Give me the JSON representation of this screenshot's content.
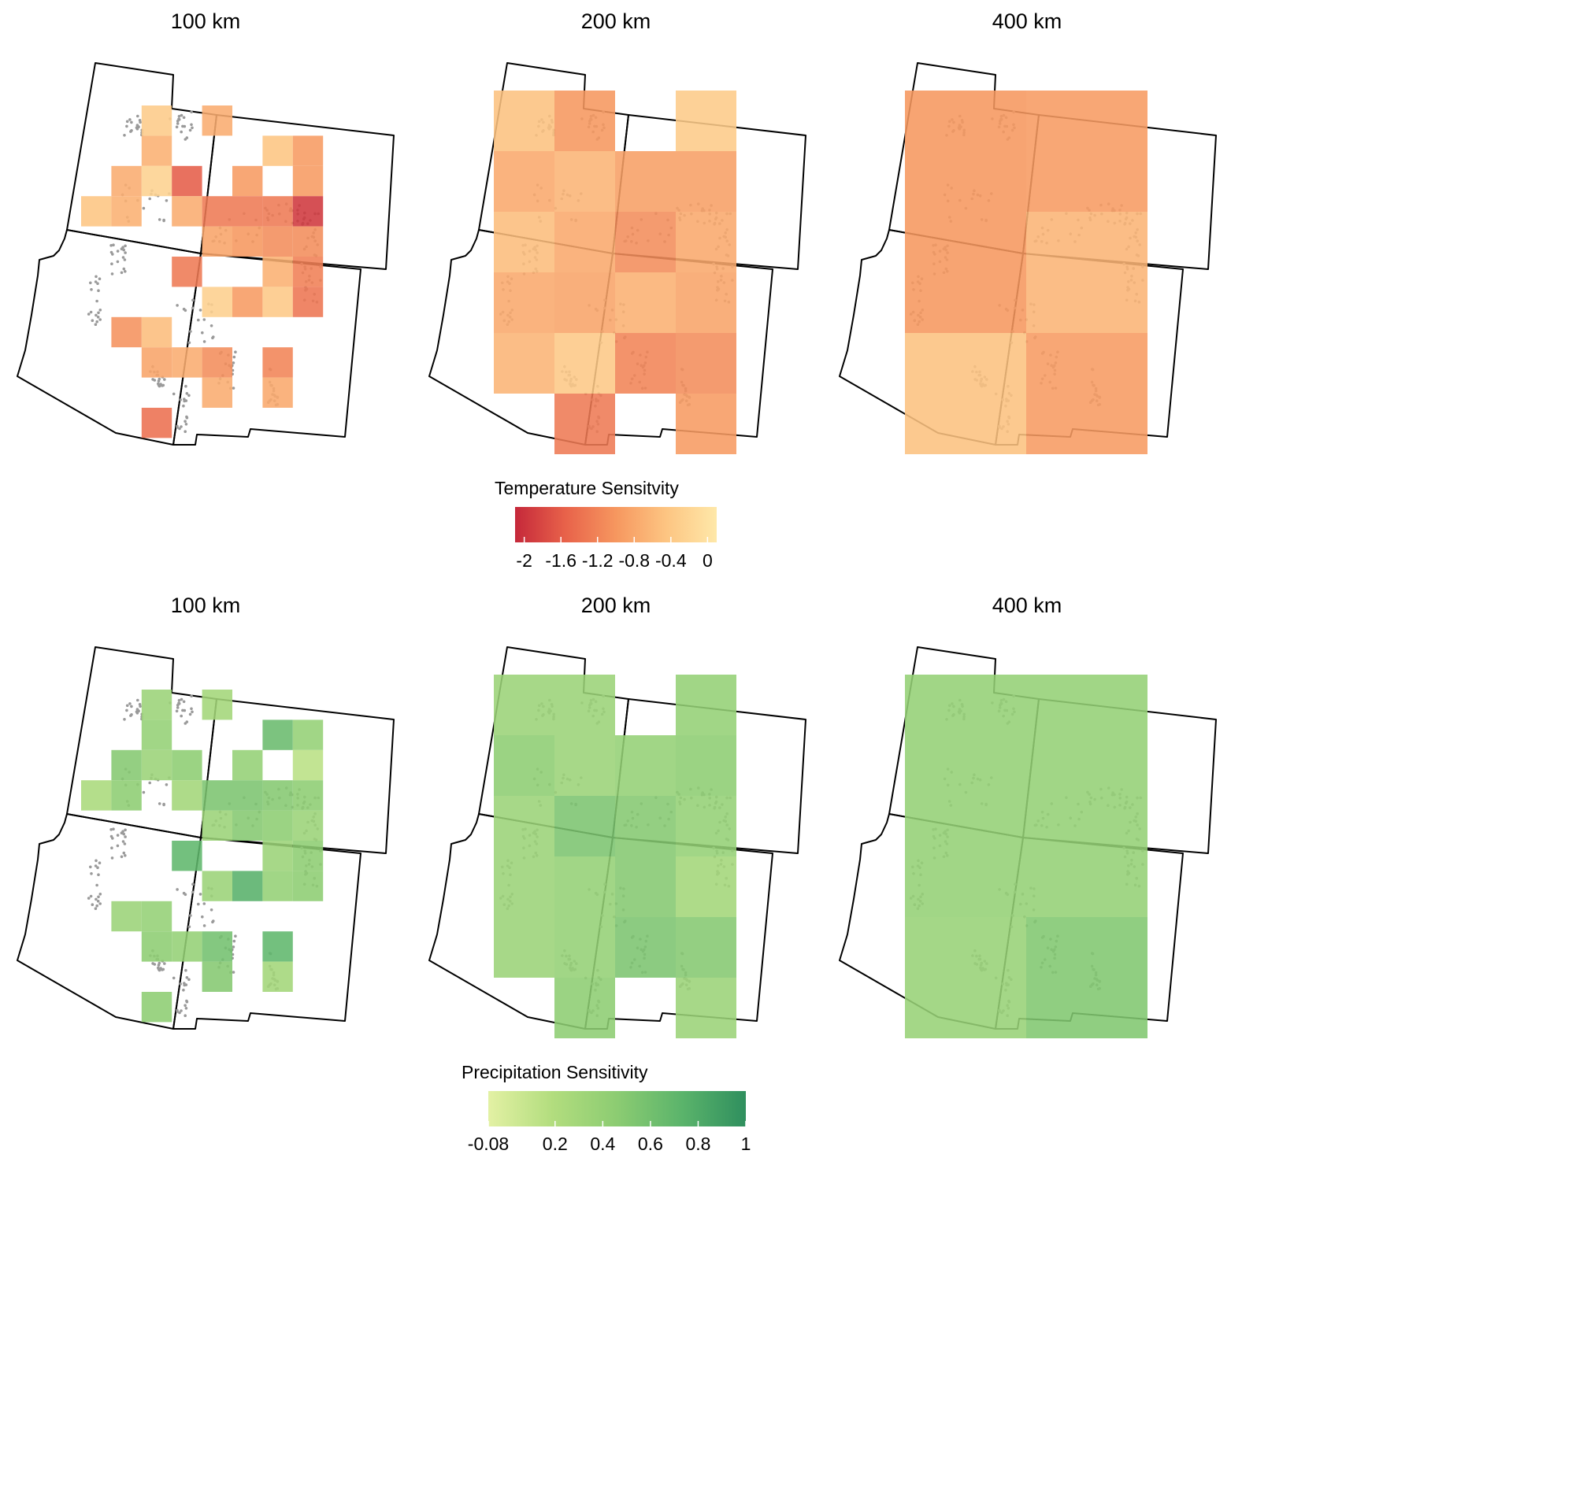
{
  "panel_titles": [
    "100 km",
    "200 km",
    "400 km",
    "100 km",
    "200 km",
    "400 km"
  ],
  "legends": {
    "temperature": {
      "title": "Temperature Sensitvity",
      "ticks": [
        "-2",
        "-1.6",
        "-1.2",
        "-0.8",
        "-0.4",
        "0"
      ],
      "tick_values": [
        -2,
        -1.6,
        -1.2,
        -0.8,
        -0.4,
        0
      ],
      "range": [
        -2.1,
        0.1
      ],
      "colors": [
        "#c5283a",
        "#e8624a",
        "#f6975f",
        "#fdc582",
        "#fee8a9"
      ]
    },
    "precipitation": {
      "title": "Precipitation Sensitivity",
      "ticks": [
        "-0.08",
        "0.2",
        "0.4",
        "0.6",
        "0.8",
        "1"
      ],
      "tick_values": [
        -0.08,
        0.2,
        0.4,
        0.6,
        0.8,
        1
      ],
      "range": [
        -0.08,
        1.0
      ],
      "colors": [
        "#e3f1a4",
        "#b2dd7e",
        "#8ccc72",
        "#5bb46b",
        "#2f8f5e"
      ]
    }
  },
  "colors": {
    "border": "#000000",
    "site_points": "#9a9a9a",
    "background": "#ffffff"
  },
  "maps": {
    "temperature": {
      "100km": [
        {
          "r": 0,
          "c": 2,
          "v": -0.35
        },
        {
          "r": 0,
          "c": 4,
          "v": -0.75
        },
        {
          "r": 1,
          "c": 2,
          "v": -0.7
        },
        {
          "r": 1,
          "c": 6,
          "v": -0.45
        },
        {
          "r": 1,
          "c": 7,
          "v": -0.95
        },
        {
          "r": 2,
          "c": 1,
          "v": -0.75
        },
        {
          "r": 2,
          "c": 2,
          "v": -0.25
        },
        {
          "r": 2,
          "c": 3,
          "v": -1.6
        },
        {
          "r": 2,
          "c": 5,
          "v": -0.95
        },
        {
          "r": 2,
          "c": 7,
          "v": -0.95
        },
        {
          "r": 3,
          "c": 0,
          "v": -0.45
        },
        {
          "r": 3,
          "c": 1,
          "v": -0.7
        },
        {
          "r": 3,
          "c": 3,
          "v": -0.75
        },
        {
          "r": 3,
          "c": 4,
          "v": -1.3
        },
        {
          "r": 3,
          "c": 5,
          "v": -1.3
        },
        {
          "r": 3,
          "c": 6,
          "v": -1.3
        },
        {
          "r": 3,
          "c": 7,
          "v": -1.95
        },
        {
          "r": 4,
          "c": 4,
          "v": -0.85
        },
        {
          "r": 4,
          "c": 5,
          "v": -1.0
        },
        {
          "r": 4,
          "c": 6,
          "v": -1.1
        },
        {
          "r": 4,
          "c": 7,
          "v": -1.1
        },
        {
          "r": 5,
          "c": 3,
          "v": -1.3
        },
        {
          "r": 5,
          "c": 6,
          "v": -0.7
        },
        {
          "r": 5,
          "c": 7,
          "v": -1.25
        },
        {
          "r": 6,
          "c": 4,
          "v": -0.3
        },
        {
          "r": 6,
          "c": 5,
          "v": -0.95
        },
        {
          "r": 6,
          "c": 6,
          "v": -0.4
        },
        {
          "r": 6,
          "c": 7,
          "v": -1.35
        },
        {
          "r": 7,
          "c": 1,
          "v": -1.05
        },
        {
          "r": 7,
          "c": 2,
          "v": -0.55
        },
        {
          "r": 8,
          "c": 2,
          "v": -0.85
        },
        {
          "r": 8,
          "c": 3,
          "v": -0.75
        },
        {
          "r": 8,
          "c": 4,
          "v": -1.1
        },
        {
          "r": 8,
          "c": 6,
          "v": -1.2
        },
        {
          "r": 9,
          "c": 4,
          "v": -0.75
        },
        {
          "r": 9,
          "c": 6,
          "v": -0.8
        },
        {
          "r": 10,
          "c": 2,
          "v": -1.4
        }
      ],
      "200km": [
        {
          "r": 0,
          "c": 0,
          "v": -0.5
        },
        {
          "r": 0,
          "c": 1,
          "v": -1.0
        },
        {
          "r": 0,
          "c": 3,
          "v": -0.35
        },
        {
          "r": 1,
          "c": 0,
          "v": -0.8
        },
        {
          "r": 1,
          "c": 1,
          "v": -0.65
        },
        {
          "r": 1,
          "c": 2,
          "v": -0.9
        },
        {
          "r": 1,
          "c": 3,
          "v": -0.9
        },
        {
          "r": 2,
          "c": 0,
          "v": -0.55
        },
        {
          "r": 2,
          "c": 1,
          "v": -0.8
        },
        {
          "r": 2,
          "c": 2,
          "v": -1.1
        },
        {
          "r": 2,
          "c": 3,
          "v": -0.8
        },
        {
          "r": 3,
          "c": 0,
          "v": -0.8
        },
        {
          "r": 3,
          "c": 1,
          "v": -0.85
        },
        {
          "r": 3,
          "c": 2,
          "v": -0.7
        },
        {
          "r": 3,
          "c": 3,
          "v": -0.85
        },
        {
          "r": 4,
          "c": 0,
          "v": -0.65
        },
        {
          "r": 4,
          "c": 1,
          "v": -0.4
        },
        {
          "r": 4,
          "c": 2,
          "v": -1.2
        },
        {
          "r": 4,
          "c": 3,
          "v": -1.1
        },
        {
          "r": 5,
          "c": 1,
          "v": -1.3
        },
        {
          "r": 5,
          "c": 3,
          "v": -0.95
        }
      ],
      "400km": [
        {
          "r": 0,
          "c": 0,
          "v": -1.0
        },
        {
          "r": 0,
          "c": 1,
          "v": -0.95
        },
        {
          "r": 1,
          "c": 0,
          "v": -1.0
        },
        {
          "r": 1,
          "c": 1,
          "v": -0.65
        },
        {
          "r": 2,
          "c": 0,
          "v": -0.5
        },
        {
          "r": 2,
          "c": 1,
          "v": -0.95
        }
      ]
    },
    "precipitation": {
      "100km": [
        {
          "r": 0,
          "c": 2,
          "v": 0.35
        },
        {
          "r": 0,
          "c": 4,
          "v": 0.3
        },
        {
          "r": 1,
          "c": 2,
          "v": 0.4
        },
        {
          "r": 1,
          "c": 6,
          "v": 0.65
        },
        {
          "r": 1,
          "c": 7,
          "v": 0.4
        },
        {
          "r": 2,
          "c": 1,
          "v": 0.5
        },
        {
          "r": 2,
          "c": 2,
          "v": 0.35
        },
        {
          "r": 2,
          "c": 3,
          "v": 0.45
        },
        {
          "r": 2,
          "c": 5,
          "v": 0.4
        },
        {
          "r": 2,
          "c": 7,
          "v": 0.15
        },
        {
          "r": 3,
          "c": 0,
          "v": 0.25
        },
        {
          "r": 3,
          "c": 1,
          "v": 0.45
        },
        {
          "r": 3,
          "c": 3,
          "v": 0.3
        },
        {
          "r": 3,
          "c": 4,
          "v": 0.55
        },
        {
          "r": 3,
          "c": 5,
          "v": 0.55
        },
        {
          "r": 3,
          "c": 6,
          "v": 0.5
        },
        {
          "r": 3,
          "c": 7,
          "v": 0.45
        },
        {
          "r": 4,
          "c": 4,
          "v": 0.35
        },
        {
          "r": 4,
          "c": 5,
          "v": 0.5
        },
        {
          "r": 4,
          "c": 6,
          "v": 0.45
        },
        {
          "r": 4,
          "c": 7,
          "v": 0.35
        },
        {
          "r": 5,
          "c": 3,
          "v": 0.7
        },
        {
          "r": 5,
          "c": 6,
          "v": 0.35
        },
        {
          "r": 5,
          "c": 7,
          "v": 0.45
        },
        {
          "r": 6,
          "c": 4,
          "v": 0.35
        },
        {
          "r": 6,
          "c": 5,
          "v": 0.75
        },
        {
          "r": 6,
          "c": 6,
          "v": 0.4
        },
        {
          "r": 6,
          "c": 7,
          "v": 0.45
        },
        {
          "r": 7,
          "c": 1,
          "v": 0.35
        },
        {
          "r": 7,
          "c": 2,
          "v": 0.4
        },
        {
          "r": 8,
          "c": 2,
          "v": 0.45
        },
        {
          "r": 8,
          "c": 3,
          "v": 0.4
        },
        {
          "r": 8,
          "c": 4,
          "v": 0.6
        },
        {
          "r": 8,
          "c": 6,
          "v": 0.7
        },
        {
          "r": 9,
          "c": 4,
          "v": 0.5
        },
        {
          "r": 9,
          "c": 6,
          "v": 0.3
        },
        {
          "r": 10,
          "c": 2,
          "v": 0.45
        }
      ],
      "200km": [
        {
          "r": 0,
          "c": 0,
          "v": 0.35
        },
        {
          "r": 0,
          "c": 1,
          "v": 0.35
        },
        {
          "r": 0,
          "c": 3,
          "v": 0.4
        },
        {
          "r": 1,
          "c": 0,
          "v": 0.45
        },
        {
          "r": 1,
          "c": 1,
          "v": 0.35
        },
        {
          "r": 1,
          "c": 2,
          "v": 0.4
        },
        {
          "r": 1,
          "c": 3,
          "v": 0.45
        },
        {
          "r": 2,
          "c": 0,
          "v": 0.35
        },
        {
          "r": 2,
          "c": 1,
          "v": 0.55
        },
        {
          "r": 2,
          "c": 2,
          "v": 0.5
        },
        {
          "r": 2,
          "c": 3,
          "v": 0.4
        },
        {
          "r": 3,
          "c": 0,
          "v": 0.35
        },
        {
          "r": 3,
          "c": 1,
          "v": 0.4
        },
        {
          "r": 3,
          "c": 2,
          "v": 0.5
        },
        {
          "r": 3,
          "c": 3,
          "v": 0.3
        },
        {
          "r": 4,
          "c": 0,
          "v": 0.35
        },
        {
          "r": 4,
          "c": 1,
          "v": 0.4
        },
        {
          "r": 4,
          "c": 2,
          "v": 0.55
        },
        {
          "r": 4,
          "c": 3,
          "v": 0.5
        },
        {
          "r": 5,
          "c": 1,
          "v": 0.45
        },
        {
          "r": 5,
          "c": 3,
          "v": 0.35
        }
      ],
      "400km": [
        {
          "r": 0,
          "c": 0,
          "v": 0.4
        },
        {
          "r": 0,
          "c": 1,
          "v": 0.4
        },
        {
          "r": 1,
          "c": 0,
          "v": 0.4
        },
        {
          "r": 1,
          "c": 1,
          "v": 0.4
        },
        {
          "r": 2,
          "c": 0,
          "v": 0.38
        },
        {
          "r": 2,
          "c": 1,
          "v": 0.52
        }
      ]
    }
  }
}
